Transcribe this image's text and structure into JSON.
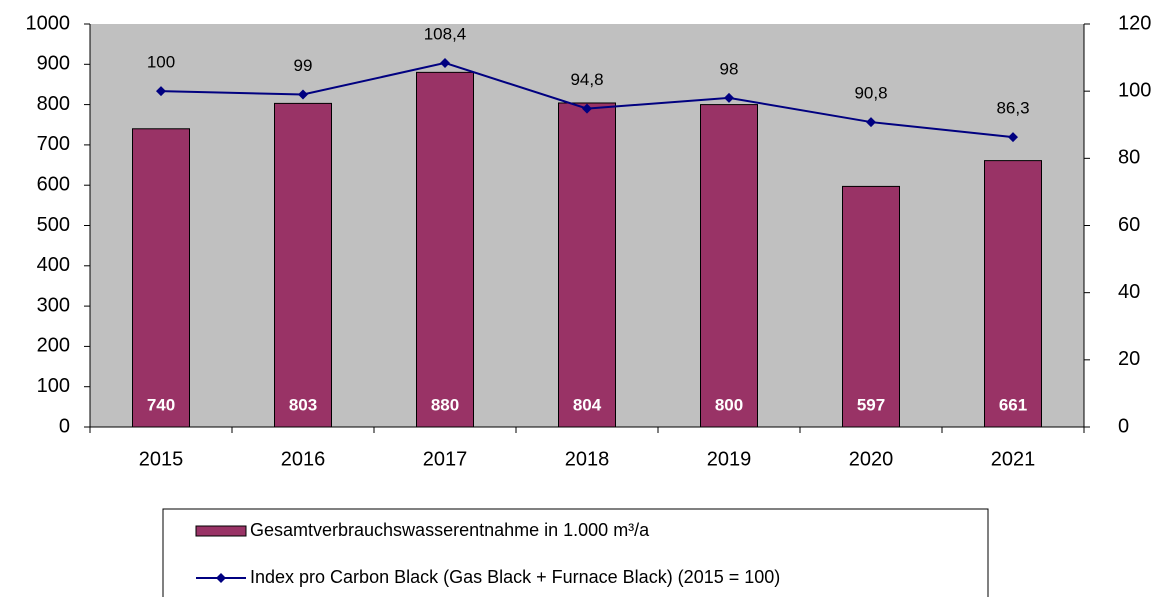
{
  "chart_data": {
    "type": "bar",
    "categories": [
      "2015",
      "2016",
      "2017",
      "2018",
      "2019",
      "2020",
      "2021"
    ],
    "series": [
      {
        "name": "Gesamtverbrauchswasserentnahme in 1.000 m³/a",
        "type": "bar",
        "color": "#993366",
        "values": [
          740,
          803,
          880,
          804,
          800,
          597,
          661
        ]
      },
      {
        "name": "Index pro Carbon Black (Gas Black + Furnace Black)  (2015 = 100)",
        "type": "line",
        "axis": "y2",
        "color": "#000080",
        "values": [
          100,
          99,
          108.4,
          94.8,
          98,
          90.8,
          86.3
        ],
        "value_labels": [
          "100",
          "99",
          "108,4",
          "94,8",
          "98",
          "90,8",
          "86,3"
        ]
      }
    ],
    "ylim": [
      0,
      1000
    ],
    "yticks": [
      0,
      100,
      200,
      300,
      400,
      500,
      600,
      700,
      800,
      900,
      1000
    ],
    "y2lim": [
      0,
      120
    ],
    "y2ticks": [
      0,
      20,
      40,
      60,
      80,
      100,
      120
    ],
    "plot_background": "#c0c0c0"
  }
}
